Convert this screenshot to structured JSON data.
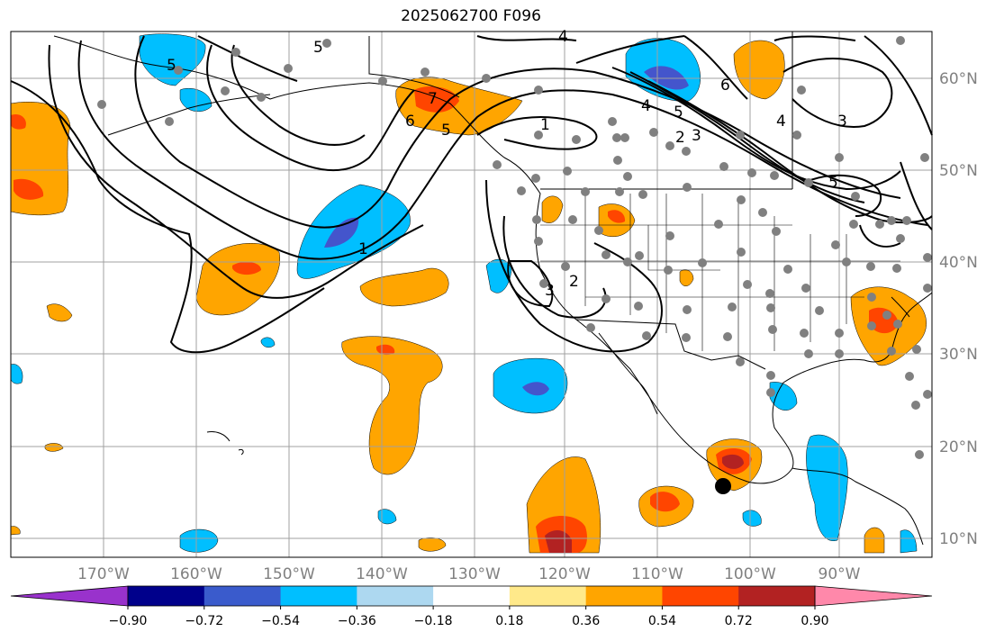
{
  "title": "2025062700 F096",
  "map": {
    "lat_labels": [
      "60°N",
      "50°N",
      "40°N",
      "30°N",
      "20°N",
      "10°N"
    ],
    "lon_labels": [
      "170°W",
      "160°W",
      "150°W",
      "140°W",
      "130°W",
      "120°W",
      "110°W",
      "100°W",
      "90°W"
    ],
    "contour_labels": [
      "5",
      "5",
      "5",
      "4",
      "6",
      "7",
      "1",
      "1",
      "2",
      "3",
      "2",
      "3",
      "4",
      "5",
      "6",
      "3",
      "4",
      "5"
    ],
    "colors": {
      "neg_strong": "#4455cc",
      "neg_mid": "#00bfff",
      "pos_mid": "#ffa500",
      "pos_strong": "#ff4500",
      "pos_max": "#b22222"
    }
  },
  "colorbar": {
    "tick_labels": [
      "−0.90",
      "−0.72",
      "−0.54",
      "−0.36",
      "−0.18",
      "0.18",
      "0.36",
      "0.54",
      "0.72",
      "0.90"
    ],
    "colors": [
      "#9932cc",
      "#00008b",
      "#3a5bcc",
      "#00bfff",
      "#add8f0",
      "#ffffff",
      "#ffe98a",
      "#ffa500",
      "#ff4500",
      "#b22222",
      "#ff88aa"
    ]
  }
}
